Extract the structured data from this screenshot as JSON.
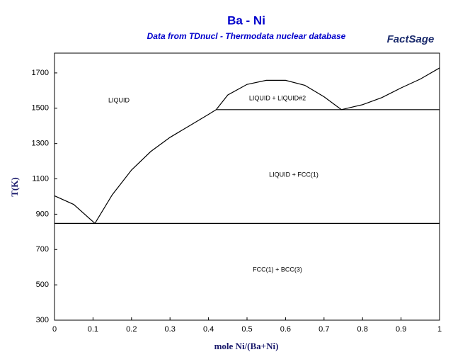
{
  "chart_data": {
    "type": "line",
    "title": "Ba - Ni",
    "subtitle": "Data from TDnucl - Thermodata nuclear database",
    "logo": "FactSage",
    "xlabel": "mole Ni/(Ba+Ni)",
    "ylabel": "T(K)",
    "xlim": [
      0,
      1
    ],
    "ylim": [
      300,
      1812
    ],
    "xticks": [
      0,
      0.1,
      0.2,
      0.3,
      0.4,
      0.5,
      0.6,
      0.7,
      0.8,
      0.9,
      1
    ],
    "yticks": [
      300,
      500,
      700,
      900,
      1100,
      1300,
      1500,
      1700
    ],
    "series": [
      {
        "color": "#000000",
        "x": [
          0,
          0.05,
          0.105
        ],
        "values": [
          1004,
          955,
          848
        ]
      },
      {
        "color": "#000000",
        "x": [
          0.105,
          0.15,
          0.2,
          0.25,
          0.3,
          0.35,
          0.4,
          0.42
        ],
        "values": [
          848,
          1010,
          1150,
          1255,
          1335,
          1400,
          1465,
          1492
        ]
      },
      {
        "color": "#000000",
        "x": [
          0.42,
          0.45,
          0.5,
          0.55,
          0.6,
          0.65,
          0.7,
          0.745
        ],
        "values": [
          1492,
          1575,
          1635,
          1658,
          1658,
          1630,
          1565,
          1492
        ]
      },
      {
        "color": "#000000",
        "x": [
          0.745,
          0.8,
          0.85,
          0.9,
          0.95,
          1
        ],
        "values": [
          1492,
          1520,
          1560,
          1615,
          1665,
          1728
        ]
      },
      {
        "color": "#000000",
        "x": [
          0.42,
          1
        ],
        "values": [
          1492,
          1492
        ]
      },
      {
        "color": "#000000",
        "x": [
          0,
          1
        ],
        "values": [
          848,
          848
        ]
      }
    ],
    "annotations": [
      "LIQUID",
      "LIQUID + LIQUID#2",
      "LIQUID + FCC(1)",
      "FCC(1) + BCC(3)"
    ]
  }
}
